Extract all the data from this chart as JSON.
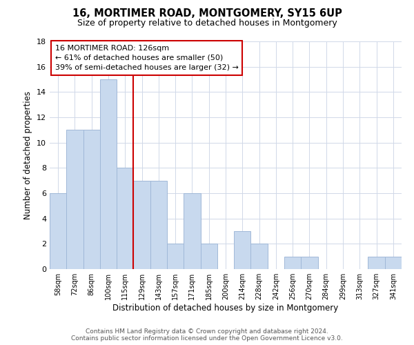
{
  "title": "16, MORTIMER ROAD, MONTGOMERY, SY15 6UP",
  "subtitle": "Size of property relative to detached houses in Montgomery",
  "xlabel": "Distribution of detached houses by size in Montgomery",
  "ylabel": "Number of detached properties",
  "bar_labels": [
    "58sqm",
    "72sqm",
    "86sqm",
    "100sqm",
    "115sqm",
    "129sqm",
    "143sqm",
    "157sqm",
    "171sqm",
    "185sqm",
    "200sqm",
    "214sqm",
    "228sqm",
    "242sqm",
    "256sqm",
    "270sqm",
    "284sqm",
    "299sqm",
    "313sqm",
    "327sqm",
    "341sqm"
  ],
  "bar_values": [
    6,
    11,
    11,
    15,
    8,
    7,
    7,
    2,
    6,
    2,
    0,
    3,
    2,
    0,
    1,
    1,
    0,
    0,
    0,
    1,
    1
  ],
  "bar_color": "#c8d9ee",
  "bar_edge_color": "#a0b8d8",
  "vline_color": "#cc0000",
  "ylim": [
    0,
    18
  ],
  "yticks": [
    0,
    2,
    4,
    6,
    8,
    10,
    12,
    14,
    16,
    18
  ],
  "vline_pos": 4.5,
  "annotation_line1": "16 MORTIMER ROAD: 126sqm",
  "annotation_line2": "← 61% of detached houses are smaller (50)",
  "annotation_line3": "39% of semi-detached houses are larger (32) →",
  "footer_line1": "Contains HM Land Registry data © Crown copyright and database right 2024.",
  "footer_line2": "Contains public sector information licensed under the Open Government Licence v3.0.",
  "background_color": "#ffffff",
  "grid_color": "#d0d8e8"
}
